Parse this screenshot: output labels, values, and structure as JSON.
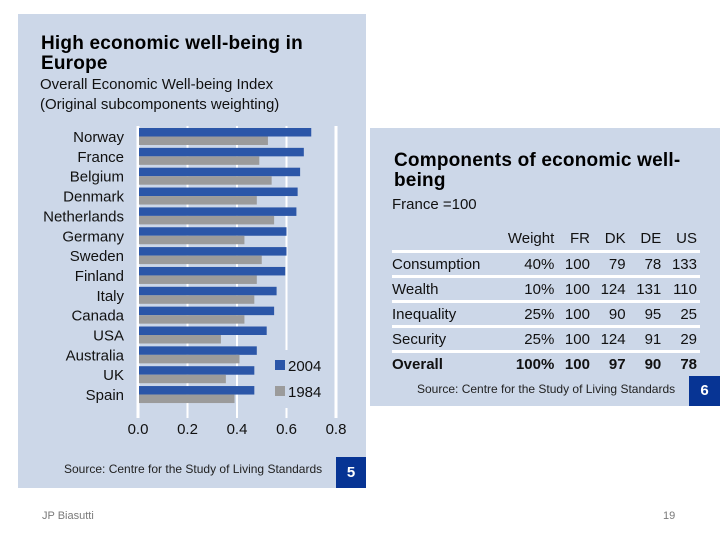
{
  "left_panel": {
    "title": "High economic well-being in Europe",
    "subtitle_1": "Overall Economic Well-being Index",
    "subtitle_2": "(Original subcomponents weighting)",
    "source": "Source: Centre for the Study of Living Standards",
    "badge": "5"
  },
  "chart_data": {
    "type": "bar",
    "orientation": "horizontal",
    "title": "High economic well-being in Europe",
    "subtitle": "Overall Economic Well-being Index (Original subcomponents weighting)",
    "xlabel": "",
    "ylabel": "",
    "xlim": [
      0,
      0.8
    ],
    "xticks": [
      "0.0",
      "0.2",
      "0.4",
      "0.6",
      "0.8"
    ],
    "grid": true,
    "legend_position": "bottom-right",
    "categories": [
      "Norway",
      "France",
      "Belgium",
      "Denmark",
      "Netherlands",
      "Germany",
      "Sweden",
      "Finland",
      "Italy",
      "Canada",
      "USA",
      "Australia",
      "UK",
      "Spain"
    ],
    "series": [
      {
        "name": "2004",
        "color": "#2b56a8",
        "values": [
          0.7,
          0.67,
          0.655,
          0.645,
          0.64,
          0.6,
          0.6,
          0.595,
          0.56,
          0.55,
          0.52,
          0.48,
          0.47,
          0.47
        ]
      },
      {
        "name": "1984",
        "color": "#9b9b9b",
        "values": [
          0.525,
          0.49,
          0.54,
          0.48,
          0.55,
          0.43,
          0.5,
          0.48,
          0.47,
          0.43,
          0.335,
          0.41,
          0.355,
          0.39
        ]
      }
    ]
  },
  "right_panel": {
    "title": "Components of economic well-being",
    "subtitle": "France =100",
    "table": {
      "headers": [
        "",
        "Weight",
        "FR",
        "DK",
        "DE",
        "US"
      ],
      "rows": [
        {
          "label": "Consumption",
          "weight": "40%",
          "FR": "100",
          "DK": "79",
          "DE": "78",
          "US": "133"
        },
        {
          "label": "Wealth",
          "weight": "10%",
          "FR": "100",
          "DK": "124",
          "DE": "131",
          "US": "110"
        },
        {
          "label": "Inequality",
          "weight": "25%",
          "FR": "100",
          "DK": "90",
          "DE": "95",
          "US": "25"
        },
        {
          "label": "Security",
          "weight": "25%",
          "FR": "100",
          "DK": "124",
          "DE": "91",
          "US": "29"
        },
        {
          "label": "Overall",
          "weight": "100%",
          "FR": "100",
          "DK": "97",
          "DE": "90",
          "US": "78"
        }
      ]
    },
    "source": "Source: Centre for the Study of Living Standards",
    "badge": "6"
  },
  "footer": {
    "author": "JP Biasutti",
    "page_number": "19"
  }
}
